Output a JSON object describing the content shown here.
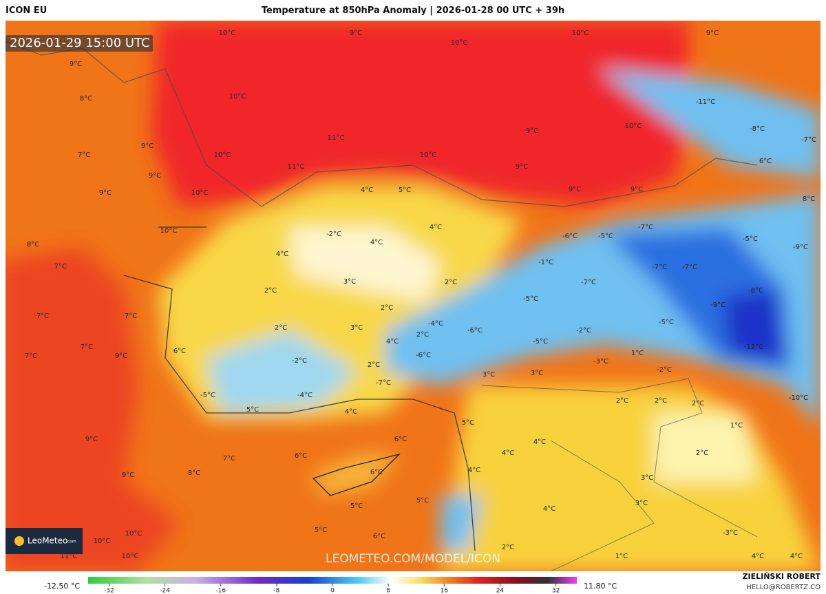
{
  "header": {
    "model": "ICON EU",
    "title": "Temperature at 850hPa Anomaly | 2026-01-28 00 UTC + 39h"
  },
  "map": {
    "timestamp": "2026-01-29 15:00 UTC",
    "watermark": "LEOMETEO.COM/MODEL/ICON",
    "logo": {
      "name": "LeoMeteo",
      "suffix": ".com"
    },
    "labels": [
      "10°C",
      "9°C",
      "10°C",
      "10°C",
      "9°C",
      "9°C",
      "8°C",
      "10°C",
      "11°C",
      "9°C",
      "7°C",
      "10°C",
      "11°C",
      "10°C",
      "9°C",
      "10°C",
      "9°C",
      "-11°C",
      "-8°C",
      "-7°C",
      "6°C",
      "9°C",
      "9°C",
      "10°C",
      "4°C",
      "5°C",
      "9°C",
      "9°C",
      "8°C",
      "10°C",
      "4°C",
      "-2°C",
      "4°C",
      "-7°C",
      "-6°C",
      "-5°C",
      "-5°C",
      "-9°C",
      "8°C",
      "4°C",
      "-1°C",
      "7°C",
      "-7°C",
      "-7°C",
      "3°C",
      "2°C",
      "-7°C",
      "2°C",
      "-8°C",
      "-5°C",
      "-9°C",
      "2°C",
      "7°C",
      "7°C",
      "2°C",
      "3°C",
      "-4°C",
      "-6°C",
      "-5°C",
      "2°C",
      "4°C",
      "-2°C",
      "7°C",
      "6°C",
      "9°C",
      "1°C",
      "-5°C",
      "-6°C",
      "-12°C",
      "7°C",
      "-2°C",
      "2°C",
      "-3°C",
      "-2°C",
      "3°C",
      "3°C",
      "-7°C",
      "-5°C",
      "-4°C",
      "-10°C",
      "2°C",
      "2°C",
      "2°C",
      "5°C",
      "4°C",
      "1°C",
      "5°C",
      "9°C",
      "6°C",
      "4°C",
      "2°C",
      "7°C",
      "6°C",
      "4°C",
      "4°C",
      "9°C",
      "8°C",
      "6°C",
      "3°C",
      "3°C",
      "5°C",
      "5°C",
      "4°C",
      "5°C",
      "10°C",
      "6°C",
      "10°C",
      "-3°C",
      "2°C",
      "1°C",
      "10°C",
      "11°C",
      "4°C",
      "4°C"
    ]
  },
  "colorbar": {
    "min_label": "-12.50 °C",
    "max_label": "11.80 °C",
    "lim": [
      -35,
      35
    ],
    "ticks": [
      -32,
      -24,
      -16,
      -8,
      0,
      8,
      16,
      24,
      32
    ]
  },
  "footer": {
    "author": "ZIELIŃSKI ROBERT",
    "email": "HELLO@ROBERTZ.CO"
  }
}
